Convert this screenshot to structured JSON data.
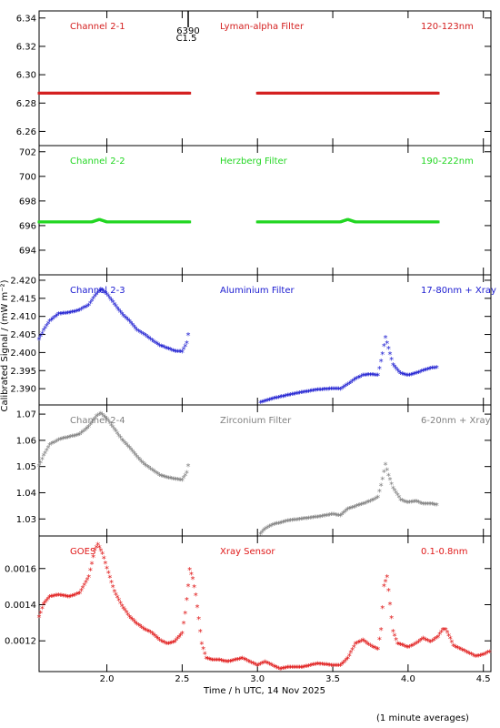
{
  "flare_marker": {
    "id": "6390",
    "class": "C1.5",
    "x": 2.54
  },
  "footer_note": "(1 minute averages)",
  "chart_data": {
    "type": "scatter",
    "xlabel": "Time / h UTC, 14 Nov 2025",
    "ylabel": "Calibrated Signal / (mW m⁻²)",
    "xlim": [
      1.55,
      4.55
    ],
    "xticks": [
      "2.0",
      "2.5",
      "3.0",
      "3.5",
      "4.0",
      "4.5"
    ],
    "grid": false,
    "panels": [
      {
        "name": "Channel 2-1",
        "filter": "Lyman-alpha Filter",
        "band": "120-123nm",
        "color": "#d42020",
        "marker": "dot",
        "ylim": [
          6.25,
          6.345
        ],
        "yticks": [
          "6.26",
          "6.28",
          "6.30",
          "6.32",
          "6.34"
        ],
        "segments": [
          [
            [
              1.55,
              6.287
            ],
            [
              2.0,
              6.287
            ],
            [
              2.2,
              6.287
            ],
            [
              2.4,
              6.287
            ],
            [
              2.55,
              6.287
            ]
          ],
          [
            [
              3.0,
              6.287
            ],
            [
              3.5,
              6.287
            ],
            [
              4.0,
              6.287
            ],
            [
              4.2,
              6.287
            ]
          ]
        ]
      },
      {
        "name": "Channel 2-2",
        "filter": "Herzberg Filter",
        "band": "190-222nm",
        "color": "#22d622",
        "marker": "dot",
        "ylim": [
          692.0,
          702.5
        ],
        "yticks": [
          "694",
          "696",
          "698",
          "700",
          "702"
        ],
        "segments": [
          [
            [
              1.55,
              696.3
            ],
            [
              1.9,
              696.3
            ],
            [
              1.95,
              696.5
            ],
            [
              2.0,
              696.3
            ],
            [
              2.55,
              696.3
            ]
          ],
          [
            [
              3.0,
              696.3
            ],
            [
              3.55,
              696.3
            ],
            [
              3.6,
              696.5
            ],
            [
              3.65,
              696.3
            ],
            [
              4.2,
              696.3
            ]
          ]
        ]
      },
      {
        "name": "Channel 2-3",
        "filter": "Aluminium Filter",
        "band": "17-80nm + Xray",
        "color": "#1a1ad0",
        "marker": "star",
        "ylim": [
          2.3855,
          2.4215
        ],
        "yticks": [
          "2.390",
          "2.395",
          "2.400",
          "2.405",
          "2.410",
          "2.415",
          "2.420"
        ],
        "segments": [
          [
            [
              1.55,
              2.4035
            ],
            [
              1.58,
              2.406
            ],
            [
              1.62,
              2.4085
            ],
            [
              1.68,
              2.4105
            ],
            [
              1.75,
              2.4108
            ],
            [
              1.82,
              2.4115
            ],
            [
              1.88,
              2.413
            ],
            [
              1.93,
              2.416
            ],
            [
              1.96,
              2.4173
            ],
            [
              2.0,
              2.416
            ],
            [
              2.05,
              2.4132
            ],
            [
              2.1,
              2.4105
            ],
            [
              2.15,
              2.4085
            ],
            [
              2.2,
              2.406
            ],
            [
              2.25,
              2.4048
            ],
            [
              2.3,
              2.4032
            ],
            [
              2.35,
              2.4018
            ],
            [
              2.4,
              2.401
            ],
            [
              2.45,
              2.4002
            ],
            [
              2.5,
              2.4
            ],
            [
              2.53,
              2.4025
            ],
            [
              2.55,
              2.407
            ]
          ],
          [
            [
              3.02,
              2.386
            ],
            [
              3.1,
              2.387
            ],
            [
              3.2,
              2.388
            ],
            [
              3.3,
              2.3888
            ],
            [
              3.4,
              2.3895
            ],
            [
              3.5,
              2.3898
            ],
            [
              3.55,
              2.3897
            ],
            [
              3.6,
              2.391
            ],
            [
              3.65,
              2.3925
            ],
            [
              3.7,
              2.3935
            ],
            [
              3.75,
              2.3937
            ],
            [
              3.8,
              2.3935
            ],
            [
              3.83,
              2.3995
            ],
            [
              3.85,
              2.404
            ],
            [
              3.87,
              2.401
            ],
            [
              3.9,
              2.3965
            ],
            [
              3.93,
              2.395
            ],
            [
              3.95,
              2.394
            ],
            [
              4.0,
              2.3935
            ],
            [
              4.05,
              2.394
            ],
            [
              4.1,
              2.3948
            ],
            [
              4.15,
              2.3955
            ],
            [
              4.2,
              2.3957
            ]
          ]
        ]
      },
      {
        "name": "Channel 2-4",
        "filter": "Zirconium Filter",
        "band": "6-20nm + Xray",
        "color": "#808080",
        "marker": "star",
        "ylim": [
          1.0235,
          1.0735
        ],
        "yticks": [
          "1.03",
          "1.04",
          "1.05",
          "1.06",
          "1.07"
        ],
        "segments": [
          [
            [
              1.55,
              1.05
            ],
            [
              1.58,
              1.054
            ],
            [
              1.62,
              1.058
            ],
            [
              1.68,
              1.06
            ],
            [
              1.75,
              1.061
            ],
            [
              1.82,
              1.062
            ],
            [
              1.88,
              1.065
            ],
            [
              1.93,
              1.069
            ],
            [
              1.96,
              1.07
            ],
            [
              2.0,
              1.068
            ],
            [
              2.05,
              1.064
            ],
            [
              2.1,
              1.06
            ],
            [
              2.15,
              1.057
            ],
            [
              2.2,
              1.0535
            ],
            [
              2.25,
              1.0505
            ],
            [
              2.3,
              1.0485
            ],
            [
              2.35,
              1.0465
            ],
            [
              2.4,
              1.0455
            ],
            [
              2.45,
              1.045
            ],
            [
              2.5,
              1.0445
            ],
            [
              2.53,
              1.0475
            ],
            [
              2.55,
              1.0525
            ]
          ],
          [
            [
              3.02,
              1.024
            ],
            [
              3.05,
              1.026
            ],
            [
              3.1,
              1.0275
            ],
            [
              3.2,
              1.029
            ],
            [
              3.3,
              1.0298
            ],
            [
              3.4,
              1.0305
            ],
            [
              3.5,
              1.0315
            ],
            [
              3.55,
              1.031
            ],
            [
              3.6,
              1.0335
            ],
            [
              3.65,
              1.0345
            ],
            [
              3.7,
              1.0355
            ],
            [
              3.75,
              1.0365
            ],
            [
              3.8,
              1.038
            ],
            [
              3.83,
              1.045
            ],
            [
              3.85,
              1.0505
            ],
            [
              3.87,
              1.0465
            ],
            [
              3.9,
              1.0415
            ],
            [
              3.93,
              1.039
            ],
            [
              3.95,
              1.037
            ],
            [
              4.0,
              1.036
            ],
            [
              4.05,
              1.0365
            ],
            [
              4.1,
              1.0355
            ],
            [
              4.15,
              1.0355
            ],
            [
              4.2,
              1.035
            ]
          ]
        ]
      },
      {
        "name": "GOES",
        "filter": "Xray Sensor",
        "band": "0.1-0.8nm",
        "color": "#e01818",
        "marker": "star",
        "ylim": [
          0.00103,
          0.00178
        ],
        "yticks": [
          "0.0012",
          "0.0014",
          "0.0016"
        ],
        "segments": [
          [
            [
              1.55,
              0.00133
            ],
            [
              1.58,
              0.0014
            ],
            [
              1.62,
              0.00144
            ],
            [
              1.68,
              0.00145
            ],
            [
              1.75,
              0.00144
            ],
            [
              1.82,
              0.00146
            ],
            [
              1.88,
              0.00155
            ],
            [
              1.92,
              0.0017
            ],
            [
              1.94,
              0.00173
            ],
            [
              1.97,
              0.00168
            ],
            [
              2.0,
              0.0016
            ],
            [
              2.05,
              0.00147
            ],
            [
              2.1,
              0.00139
            ],
            [
              2.15,
              0.00133
            ],
            [
              2.2,
              0.00129
            ],
            [
              2.25,
              0.00126
            ],
            [
              2.3,
              0.00124
            ],
            [
              2.35,
              0.0012
            ],
            [
              2.4,
              0.00118
            ],
            [
              2.45,
              0.00119
            ],
            [
              2.5,
              0.00124
            ],
            [
              2.52,
              0.00135
            ],
            [
              2.54,
              0.0015
            ],
            [
              2.55,
              0.00159
            ],
            [
              2.57,
              0.00154
            ],
            [
              2.59,
              0.00145
            ],
            [
              2.61,
              0.00132
            ],
            [
              2.63,
              0.00118
            ],
            [
              2.66,
              0.0011
            ],
            [
              2.7,
              0.00109
            ],
            [
              2.75,
              0.00109
            ],
            [
              2.8,
              0.00108
            ],
            [
              2.85,
              0.00109
            ],
            [
              2.9,
              0.0011
            ],
            [
              2.95,
              0.00108
            ],
            [
              3.0,
              0.00106
            ],
            [
              3.05,
              0.00108
            ],
            [
              3.1,
              0.00106
            ],
            [
              3.15,
              0.00104
            ],
            [
              3.2,
              0.00105
            ],
            [
              3.3,
              0.00105
            ],
            [
              3.4,
              0.00107
            ],
            [
              3.5,
              0.00106
            ],
            [
              3.55,
              0.00106
            ],
            [
              3.6,
              0.0011
            ],
            [
              3.65,
              0.00118
            ],
            [
              3.7,
              0.0012
            ],
            [
              3.75,
              0.00117
            ],
            [
              3.8,
              0.00115
            ],
            [
              3.82,
              0.00126
            ],
            [
              3.84,
              0.0015
            ],
            [
              3.86,
              0.00155
            ],
            [
              3.88,
              0.0014
            ],
            [
              3.9,
              0.00125
            ],
            [
              3.93,
              0.00118
            ],
            [
              3.97,
              0.00117
            ],
            [
              4.0,
              0.00116
            ],
            [
              4.05,
              0.00118
            ],
            [
              4.1,
              0.00121
            ],
            [
              4.15,
              0.00119
            ],
            [
              4.2,
              0.00122
            ],
            [
              4.23,
              0.00126
            ],
            [
              4.25,
              0.00126
            ],
            [
              4.28,
              0.00121
            ],
            [
              4.3,
              0.00117
            ],
            [
              4.35,
              0.00115
            ],
            [
              4.4,
              0.00113
            ],
            [
              4.45,
              0.00111
            ],
            [
              4.5,
              0.00112
            ],
            [
              4.55,
              0.00114
            ]
          ]
        ]
      }
    ]
  }
}
